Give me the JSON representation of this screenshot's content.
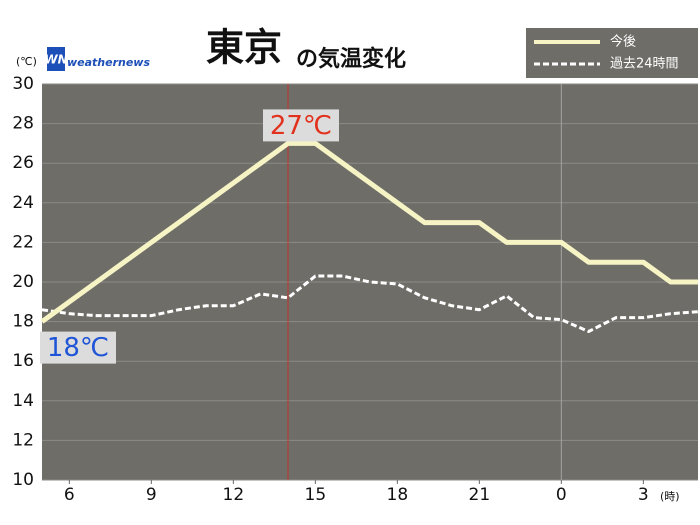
{
  "chart_data": {
    "type": "line",
    "title": "東京",
    "subtitle": "の気温変化",
    "logo": "weathernews",
    "logo_mark": "WN",
    "y_unit": "(℃)",
    "x_unit": "(時)",
    "x": [
      5,
      6,
      7,
      8,
      9,
      10,
      11,
      12,
      13,
      14,
      15,
      16,
      17,
      18,
      19,
      20,
      21,
      22,
      23,
      24,
      25,
      26,
      27,
      28,
      29
    ],
    "series": [
      {
        "name": "今後",
        "color": "#f6f4c4",
        "style": "solid",
        "values": [
          18,
          19,
          20,
          21,
          22,
          23,
          24,
          25,
          26,
          27,
          27,
          26,
          25,
          24,
          23,
          23,
          23,
          22,
          22,
          22,
          21,
          21,
          21,
          20,
          20
        ]
      },
      {
        "name": "過去24時間",
        "color": "#ffffff",
        "style": "dashed",
        "values": [
          18.6,
          18.4,
          18.3,
          18.3,
          18.3,
          18.6,
          18.8,
          18.8,
          19.4,
          19.2,
          20.3,
          20.3,
          20.0,
          19.9,
          19.2,
          18.8,
          18.6,
          19.3,
          18.2,
          18.1,
          17.5,
          18.2,
          18.2,
          18.4,
          18.5
        ]
      }
    ],
    "annotations": [
      {
        "text": "27℃",
        "color": "#e2311d",
        "x": 14,
        "y": 27
      },
      {
        "text": "18℃",
        "color": "#1f55d6",
        "x": 5,
        "y": 18
      }
    ],
    "now_line": 14,
    "day_line": 24,
    "xlim": [
      5,
      29
    ],
    "xticks": [
      6,
      9,
      12,
      15,
      18,
      21,
      {
        "value": 24,
        "label": "0"
      },
      {
        "value": 27,
        "label": "3"
      }
    ],
    "ylim": [
      10,
      30
    ],
    "yticks": [
      10,
      12,
      14,
      16,
      18,
      20,
      22,
      24,
      26,
      28,
      30
    ],
    "grid": true
  }
}
